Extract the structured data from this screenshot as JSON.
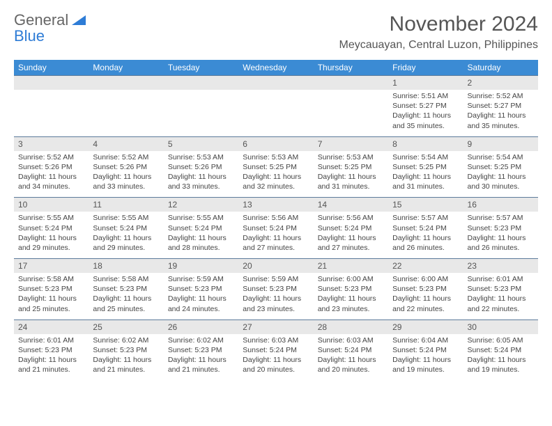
{
  "logo": {
    "word1": "General",
    "word2": "Blue"
  },
  "title": "November 2024",
  "location": "Meycauayan, Central Luzon, Philippines",
  "colors": {
    "header_bg": "#3b8bd4",
    "header_text": "#ffffff",
    "daynum_bg": "#e8e8e8",
    "border": "#5b7a9a",
    "logo_gray": "#666666",
    "logo_blue": "#2e7cd6"
  },
  "day_headers": [
    "Sunday",
    "Monday",
    "Tuesday",
    "Wednesday",
    "Thursday",
    "Friday",
    "Saturday"
  ],
  "weeks": [
    [
      null,
      null,
      null,
      null,
      null,
      {
        "n": "1",
        "sr": "5:51 AM",
        "ss": "5:27 PM",
        "dl": "11 hours and 35 minutes."
      },
      {
        "n": "2",
        "sr": "5:52 AM",
        "ss": "5:27 PM",
        "dl": "11 hours and 35 minutes."
      }
    ],
    [
      {
        "n": "3",
        "sr": "5:52 AM",
        "ss": "5:26 PM",
        "dl": "11 hours and 34 minutes."
      },
      {
        "n": "4",
        "sr": "5:52 AM",
        "ss": "5:26 PM",
        "dl": "11 hours and 33 minutes."
      },
      {
        "n": "5",
        "sr": "5:53 AM",
        "ss": "5:26 PM",
        "dl": "11 hours and 33 minutes."
      },
      {
        "n": "6",
        "sr": "5:53 AM",
        "ss": "5:25 PM",
        "dl": "11 hours and 32 minutes."
      },
      {
        "n": "7",
        "sr": "5:53 AM",
        "ss": "5:25 PM",
        "dl": "11 hours and 31 minutes."
      },
      {
        "n": "8",
        "sr": "5:54 AM",
        "ss": "5:25 PM",
        "dl": "11 hours and 31 minutes."
      },
      {
        "n": "9",
        "sr": "5:54 AM",
        "ss": "5:25 PM",
        "dl": "11 hours and 30 minutes."
      }
    ],
    [
      {
        "n": "10",
        "sr": "5:55 AM",
        "ss": "5:24 PM",
        "dl": "11 hours and 29 minutes."
      },
      {
        "n": "11",
        "sr": "5:55 AM",
        "ss": "5:24 PM",
        "dl": "11 hours and 29 minutes."
      },
      {
        "n": "12",
        "sr": "5:55 AM",
        "ss": "5:24 PM",
        "dl": "11 hours and 28 minutes."
      },
      {
        "n": "13",
        "sr": "5:56 AM",
        "ss": "5:24 PM",
        "dl": "11 hours and 27 minutes."
      },
      {
        "n": "14",
        "sr": "5:56 AM",
        "ss": "5:24 PM",
        "dl": "11 hours and 27 minutes."
      },
      {
        "n": "15",
        "sr": "5:57 AM",
        "ss": "5:24 PM",
        "dl": "11 hours and 26 minutes."
      },
      {
        "n": "16",
        "sr": "5:57 AM",
        "ss": "5:23 PM",
        "dl": "11 hours and 26 minutes."
      }
    ],
    [
      {
        "n": "17",
        "sr": "5:58 AM",
        "ss": "5:23 PM",
        "dl": "11 hours and 25 minutes."
      },
      {
        "n": "18",
        "sr": "5:58 AM",
        "ss": "5:23 PM",
        "dl": "11 hours and 25 minutes."
      },
      {
        "n": "19",
        "sr": "5:59 AM",
        "ss": "5:23 PM",
        "dl": "11 hours and 24 minutes."
      },
      {
        "n": "20",
        "sr": "5:59 AM",
        "ss": "5:23 PM",
        "dl": "11 hours and 23 minutes."
      },
      {
        "n": "21",
        "sr": "6:00 AM",
        "ss": "5:23 PM",
        "dl": "11 hours and 23 minutes."
      },
      {
        "n": "22",
        "sr": "6:00 AM",
        "ss": "5:23 PM",
        "dl": "11 hours and 22 minutes."
      },
      {
        "n": "23",
        "sr": "6:01 AM",
        "ss": "5:23 PM",
        "dl": "11 hours and 22 minutes."
      }
    ],
    [
      {
        "n": "24",
        "sr": "6:01 AM",
        "ss": "5:23 PM",
        "dl": "11 hours and 21 minutes."
      },
      {
        "n": "25",
        "sr": "6:02 AM",
        "ss": "5:23 PM",
        "dl": "11 hours and 21 minutes."
      },
      {
        "n": "26",
        "sr": "6:02 AM",
        "ss": "5:23 PM",
        "dl": "11 hours and 21 minutes."
      },
      {
        "n": "27",
        "sr": "6:03 AM",
        "ss": "5:24 PM",
        "dl": "11 hours and 20 minutes."
      },
      {
        "n": "28",
        "sr": "6:03 AM",
        "ss": "5:24 PM",
        "dl": "11 hours and 20 minutes."
      },
      {
        "n": "29",
        "sr": "6:04 AM",
        "ss": "5:24 PM",
        "dl": "11 hours and 19 minutes."
      },
      {
        "n": "30",
        "sr": "6:05 AM",
        "ss": "5:24 PM",
        "dl": "11 hours and 19 minutes."
      }
    ]
  ],
  "labels": {
    "sunrise": "Sunrise:",
    "sunset": "Sunset:",
    "daylight": "Daylight:"
  }
}
